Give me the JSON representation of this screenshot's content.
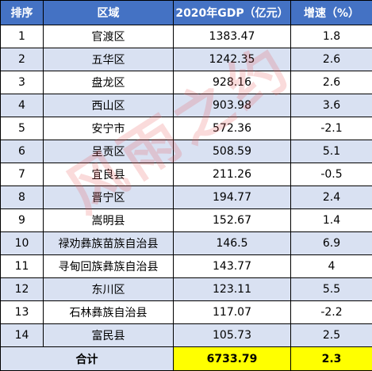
{
  "header": {
    "rank": "排序",
    "region": "区域",
    "gdp": "2020年GDP（亿元）",
    "growth": "增速（%）"
  },
  "rows": [
    {
      "rank": "1",
      "region": "官渡区",
      "gdp": "1383.47",
      "growth": "1.8"
    },
    {
      "rank": "2",
      "region": "五华区",
      "gdp": "1242.35",
      "growth": "2.6"
    },
    {
      "rank": "3",
      "region": "盘龙区",
      "gdp": "928.16",
      "growth": "2.6"
    },
    {
      "rank": "4",
      "region": "西山区",
      "gdp": "903.98",
      "growth": "3.6"
    },
    {
      "rank": "5",
      "region": "安宁市",
      "gdp": "572.36",
      "growth": "-2.1"
    },
    {
      "rank": "6",
      "region": "呈贡区",
      "gdp": "508.59",
      "growth": "5.1"
    },
    {
      "rank": "7",
      "region": "宜良县",
      "gdp": "211.26",
      "growth": "-0.5"
    },
    {
      "rank": "8",
      "region": "晋宁区",
      "gdp": "194.77",
      "growth": "2.4"
    },
    {
      "rank": "9",
      "region": "嵩明县",
      "gdp": "152.67",
      "growth": "1.4"
    },
    {
      "rank": "10",
      "region": "禄劝彝族苗族自治县",
      "gdp": "146.5",
      "growth": "6.9"
    },
    {
      "rank": "11",
      "region": "寻甸回族彝族自治县",
      "gdp": "143.77",
      "growth": "4"
    },
    {
      "rank": "12",
      "region": "东川区",
      "gdp": "123.11",
      "growth": "5.5"
    },
    {
      "rank": "13",
      "region": "石林彝族自治县",
      "gdp": "117.07",
      "growth": "-2.2"
    },
    {
      "rank": "14",
      "region": "富民县",
      "gdp": "105.73",
      "growth": "2.5"
    }
  ],
  "total": {
    "label": "合计",
    "gdp": "6733.79",
    "growth": "2.3"
  },
  "watermark": "风雨之约",
  "colors": {
    "header_bg": "#4472c4",
    "stripe_bg": "#d9e1f2",
    "highlight": "#ffff00"
  }
}
